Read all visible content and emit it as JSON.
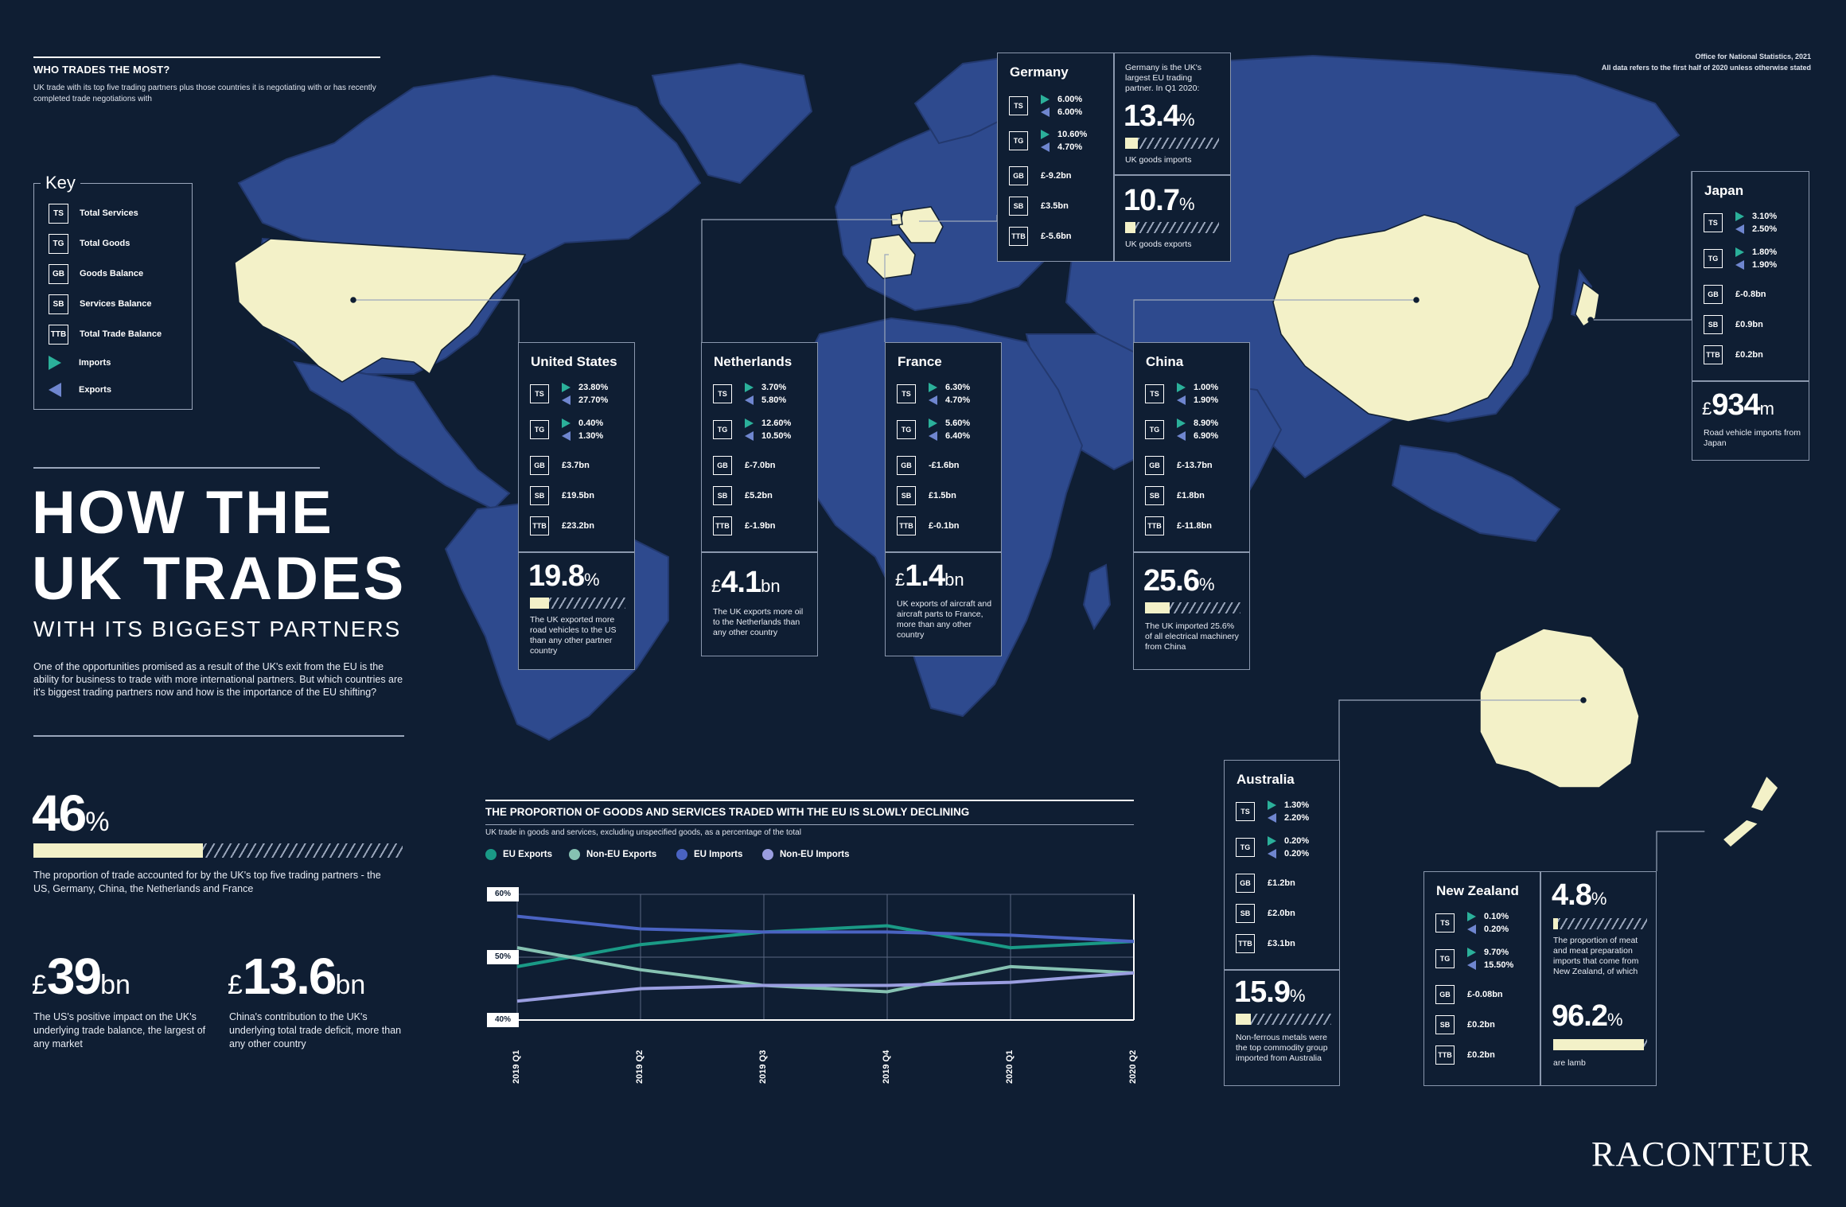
{
  "header": {
    "title": "WHO TRADES THE MOST?",
    "subtitle": "UK trade with its top five trading partners plus those countries it is negotiating with or has recently completed trade negotiations with",
    "source_line1": "Office for National Statistics, 2021",
    "source_line2": "All data refers to the first half of 2020 unless otherwise stated"
  },
  "key": {
    "title": "Key",
    "items": [
      {
        "code": "TS",
        "label": "Total Services"
      },
      {
        "code": "TG",
        "label": "Total Goods"
      },
      {
        "code": "GB",
        "label": "Goods Balance"
      },
      {
        "code": "SB",
        "label": "Services Balance"
      },
      {
        "code": "TTB",
        "label": "Total Trade Balance"
      }
    ],
    "imports_label": "Imports",
    "exports_label": "Exports"
  },
  "main": {
    "heading_line1": "HOW THE",
    "heading_line2": "UK TRADES",
    "heading_line3": "WITH ITS BIGGEST PARTNERS",
    "intro": "One of the opportunities promised as a result of the UK's exit from the EU is the ability for business to trade with more international partners. But which countries are it's biggest trading partners now and how is the importance of the EU shifting?"
  },
  "stats": {
    "top5_value": "46",
    "top5_unit": "%",
    "top5_fraction": 0.46,
    "top5_caption": "The proportion of trade accounted for by the UK's top five trading partners - the US, Germany, China, the Netherlands and France",
    "us_prefix": "£",
    "us_value": "39",
    "us_unit": "bn",
    "us_caption": "The US's positive impact on the UK's underlying trade balance, the largest of any market",
    "china_prefix": "£",
    "china_value": "13.6",
    "china_unit": "bn",
    "china_caption": "China's contribution to the UK's underlying total trade deficit, more than any other country"
  },
  "countries": {
    "us": {
      "name": "United States",
      "ts_imp": "23.80%",
      "ts_exp": "27.70%",
      "tg_imp": "0.40%",
      "tg_exp": "1.30%",
      "gb": "£3.7bn",
      "sb": "£19.5bn",
      "ttb": "£23.2bn",
      "stat": "19.8",
      "stat_unit": "%",
      "stat_fraction": 0.198,
      "caption": "The UK exported more road vehicles to the US than any other partner country"
    },
    "nl": {
      "name": "Netherlands",
      "ts_imp": "3.70%",
      "ts_exp": "5.80%",
      "tg_imp": "12.60%",
      "tg_exp": "10.50%",
      "gb": "£-7.0bn",
      "sb": "£5.2bn",
      "ttb": "£-1.9bn",
      "stat_prefix": "£",
      "stat": "4.1",
      "stat_unit": "bn",
      "caption": "The UK exports more oil to the Netherlands than any other country"
    },
    "fr": {
      "name": "France",
      "ts_imp": "6.30%",
      "ts_exp": "4.70%",
      "tg_imp": "5.60%",
      "tg_exp": "6.40%",
      "gb": "-£1.6bn",
      "sb": "£1.5bn",
      "ttb": "£-0.1bn",
      "stat_prefix": "£",
      "stat": "1.4",
      "stat_unit": "bn",
      "caption": "UK exports of aircraft and aircraft parts to France, more than any other country"
    },
    "cn": {
      "name": "China",
      "ts_imp": "1.00%",
      "ts_exp": "1.90%",
      "tg_imp": "8.90%",
      "tg_exp": "6.90%",
      "gb": "£-13.7bn",
      "sb": "£1.8bn",
      "ttb": "£-11.8bn",
      "stat": "25.6",
      "stat_unit": "%",
      "stat_fraction": 0.256,
      "caption": "The UK imported 25.6% of all electrical machinery from China"
    },
    "de": {
      "name": "Germany",
      "ts_imp": "6.00%",
      "ts_exp": "6.00%",
      "tg_imp": "10.60%",
      "tg_exp": "4.70%",
      "gb": "£-9.2bn",
      "sb": "£3.5bn",
      "ttb": "£-5.6bn",
      "note": "Germany is the UK's largest EU trading partner. In Q1 2020:",
      "stat1": "13.4",
      "stat1_unit": "%",
      "stat1_fraction": 0.134,
      "stat1_caption": "UK goods imports",
      "stat2": "10.7",
      "stat2_unit": "%",
      "stat2_fraction": 0.107,
      "stat2_caption": "UK goods exports"
    },
    "jp": {
      "name": "Japan",
      "ts_imp": "3.10%",
      "ts_exp": "2.50%",
      "tg_imp": "1.80%",
      "tg_exp": "1.90%",
      "gb": "£-0.8bn",
      "sb": "£0.9bn",
      "ttb": "£0.2bn",
      "stat_prefix": "£",
      "stat": "934",
      "stat_unit": "m",
      "caption": "Road vehicle imports from Japan"
    },
    "au": {
      "name": "Australia",
      "ts_imp": "1.30%",
      "ts_exp": "2.20%",
      "tg_imp": "0.20%",
      "tg_exp": "0.20%",
      "gb": "£1.2bn",
      "sb": "£2.0bn",
      "ttb": "£3.1bn",
      "stat": "15.9",
      "stat_unit": "%",
      "stat_fraction": 0.159,
      "caption": "Non-ferrous metals were the top commodity group imported from Australia"
    },
    "nz": {
      "name": "New Zealand",
      "ts_imp": "0.10%",
      "ts_exp": "0.20%",
      "tg_imp": "9.70%",
      "tg_exp": "15.50%",
      "gb": "£-0.08bn",
      "sb": "£0.2bn",
      "ttb": "£0.2bn",
      "stat1": "4.8",
      "stat1_unit": "%",
      "stat1_fraction": 0.048,
      "stat1_caption": "The proportion of meat and meat preparation imports that come from New Zealand, of which",
      "stat2": "96.2",
      "stat2_unit": "%",
      "stat2_fraction": 0.962,
      "stat2_caption": "are lamb"
    }
  },
  "chart_data": {
    "type": "line",
    "title": "THE PROPORTION OF GOODS AND SERVICES TRADED WITH THE EU IS SLOWLY DECLINING",
    "subtitle": "UK trade in goods and services, excluding unspecified goods, as a percentage of the total",
    "categories": [
      "2019 Q1",
      "2019 Q2",
      "2019 Q3",
      "2019 Q4",
      "2020 Q1",
      "2020 Q2"
    ],
    "ylim": [
      40,
      60
    ],
    "yticks": [
      "60%",
      "50%",
      "40%"
    ],
    "series": [
      {
        "name": "EU Exports",
        "color": "#1a9a86",
        "values": [
          48.5,
          52,
          54,
          55,
          51.5,
          52.5
        ]
      },
      {
        "name": "Non-EU Exports",
        "color": "#86c2b2",
        "values": [
          51.5,
          48,
          45.5,
          44.5,
          48.5,
          47.5
        ]
      },
      {
        "name": "EU Imports",
        "color": "#4a63c2",
        "values": [
          56.5,
          54.5,
          54,
          54,
          53.5,
          52.5
        ]
      },
      {
        "name": "Non-EU Imports",
        "color": "#9a9ee0",
        "values": [
          43,
          45,
          45.5,
          45.5,
          46,
          47.5
        ]
      }
    ]
  },
  "colors": {
    "background": "#0f1e33",
    "land": "#2e4a8e",
    "highlight": "#f3f1c8",
    "imports": "#2bb09a",
    "exports": "#6f86cf"
  },
  "brand": "RACONTEUR"
}
